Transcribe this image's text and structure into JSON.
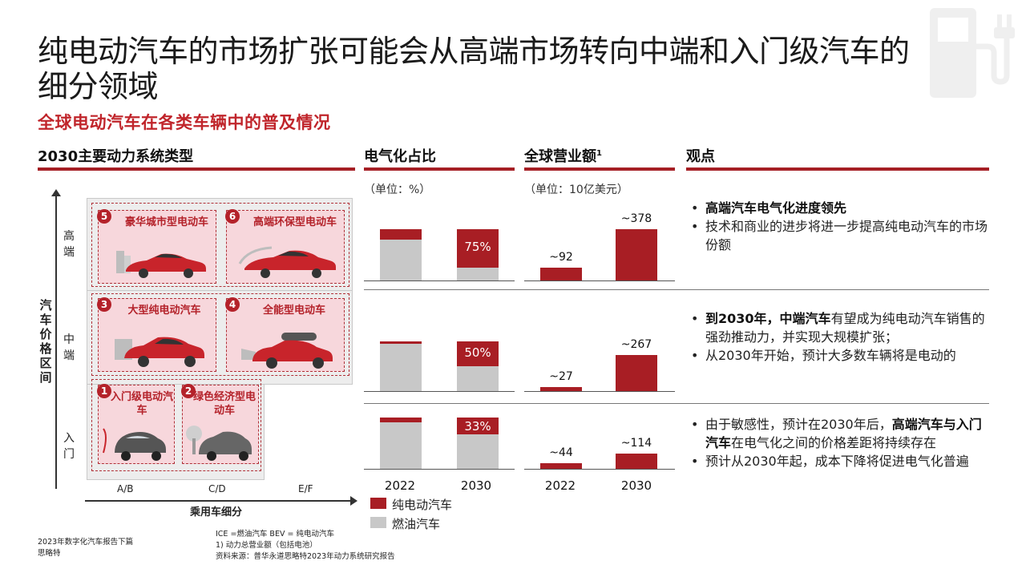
{
  "title": "纯电动汽车的市场扩张可能会从高端市场转向中端和入门级汽车的细分领域",
  "subtitle": "全球电动汽车在各类车辆中的普及情况",
  "sections": {
    "powertrain": "2030主要动力系统类型",
    "electrification": "电气化占比",
    "revenue": "全球营业额",
    "revenue_sup": "1",
    "views": "观点"
  },
  "units": {
    "electrification": "（单位：%）",
    "revenue": "（单位：10亿美元）"
  },
  "matrix": {
    "y_axis_title": "汽车价格区间",
    "y_levels": [
      "高端",
      "中端",
      "入门"
    ],
    "x_axis_title": "乘用车细分",
    "x_levels": [
      "A/B",
      "C/D",
      "E/F"
    ],
    "cells": [
      {
        "num": "5",
        "label": "豪华城市型电动车"
      },
      {
        "num": "6",
        "label": "高端环保型电动车"
      },
      {
        "num": "3",
        "label": "大型纯电动汽车"
      },
      {
        "num": "4",
        "label": "全能型电动车"
      },
      {
        "num": "1",
        "label": "入门级电动汽车"
      },
      {
        "num": "2",
        "label": "绿色经济型电动车"
      }
    ]
  },
  "chart_data": [
    {
      "type": "bar",
      "title": "电气化占比",
      "subtitle": "（单位：%）",
      "categories": [
        "2022",
        "2030"
      ],
      "rows": [
        "高端",
        "中端",
        "入门"
      ],
      "series": [
        {
          "name": "纯电动汽车",
          "color": "#a81e24",
          "values": {
            "高端": [
              20,
              75
            ],
            "中端": [
              5,
              50
            ],
            "入门": [
              10,
              33
            ]
          }
        },
        {
          "name": "燃油汽车",
          "color": "#c8c8c8",
          "values": {
            "高端": [
              80,
              25
            ],
            "中端": [
              95,
              50
            ],
            "入门": [
              90,
              67
            ]
          }
        }
      ],
      "data_labels": {
        "高端": [
          null,
          "75%"
        ],
        "中端": [
          null,
          "50%"
        ],
        "入门": [
          null,
          "33%"
        ]
      },
      "ylim": [
        0,
        100
      ]
    },
    {
      "type": "bar",
      "title": "全球营业额",
      "subtitle": "（单位：10亿美元）",
      "categories": [
        "2022",
        "2030"
      ],
      "rows": [
        "高端",
        "中端",
        "入门"
      ],
      "values": {
        "高端": [
          92,
          378
        ],
        "中端": [
          27,
          267
        ],
        "入门": [
          44,
          114
        ]
      },
      "data_labels": {
        "高端": [
          "~92",
          "~378"
        ],
        "中端": [
          "~27",
          "~267"
        ],
        "入门": [
          "~44",
          "~114"
        ]
      }
    }
  ],
  "legend": [
    {
      "name": "纯电动汽车",
      "color": "#a81e24"
    },
    {
      "name": "燃油汽车",
      "color": "#c8c8c8"
    }
  ],
  "views": {
    "high": {
      "b1": "高端汽车电气化进度领先",
      "b2": "技术和商业的进步将进一步提高纯电动汽车的市场份额"
    },
    "mid": {
      "b1_bold1": "到2030年，",
      "b1_bold2": "中端汽车",
      "b1_rest": "有望成为纯电动汽车销售的强劲推动力，并实现大规模扩张；",
      "b2": "从2030年开始，预计大多数车辆将是电动的"
    },
    "entry": {
      "b1_pre": "由于敏感性，预计在2030年后，",
      "b1_bold": "高端汽车与入门汽车",
      "b1_rest": "在电气化之间的价格差距将持续存在",
      "b2": "预计从2030年起，成本下降将促进电气化普遍"
    }
  },
  "footer": {
    "left1": "2023年数字化汽车报告下篇",
    "left2": "思略特",
    "mid1": "ICE =燃油汽车 BEV = 纯电动汽车",
    "mid2": "1) 动力总营业额（包括电池）",
    "mid3": "资料来源：普华永道思略特2023年动力系统研究报告"
  }
}
